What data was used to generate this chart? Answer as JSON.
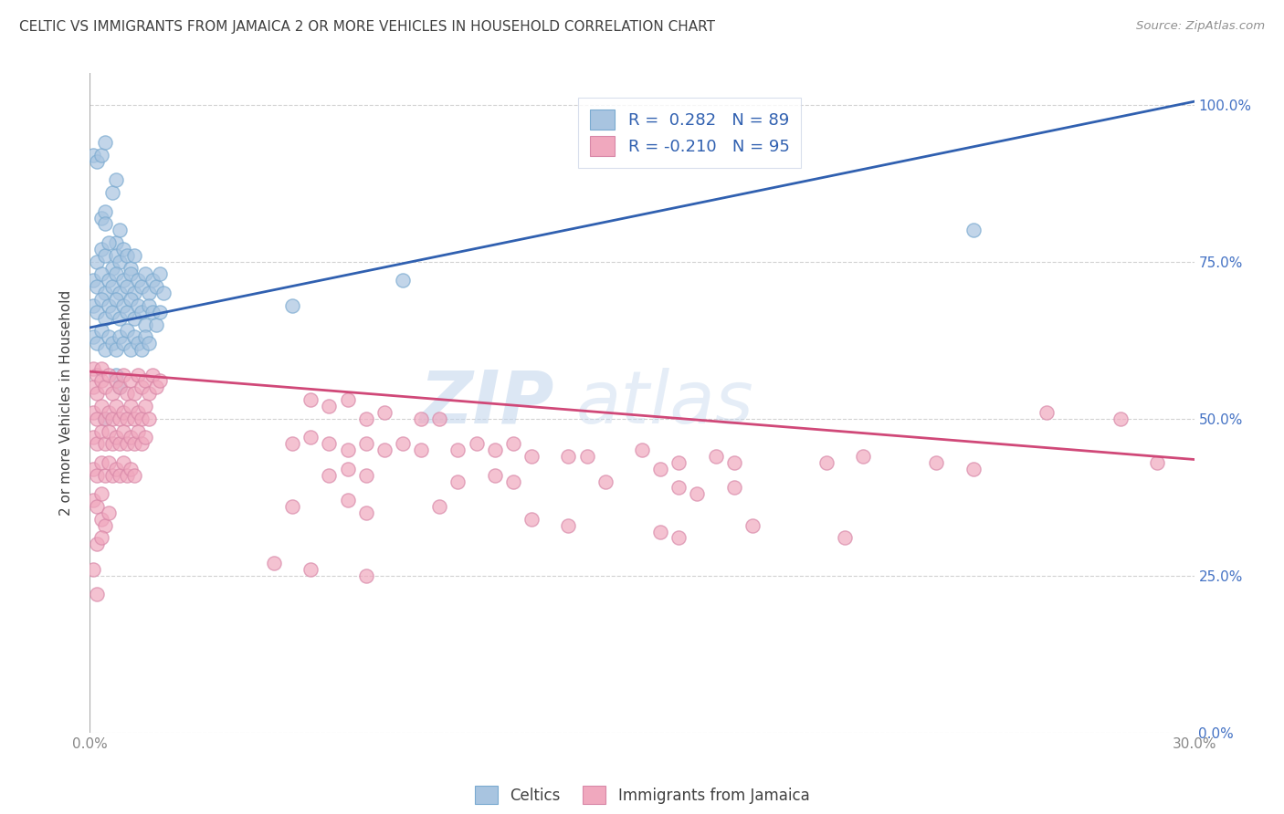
{
  "title": "CELTIC VS IMMIGRANTS FROM JAMAICA 2 OR MORE VEHICLES IN HOUSEHOLD CORRELATION CHART",
  "source": "Source: ZipAtlas.com",
  "ylabel_label": "2 or more Vehicles in Household",
  "legend_label1": "Celtics",
  "legend_label2": "Immigrants from Jamaica",
  "R1": 0.282,
  "N1": 89,
  "R2": -0.21,
  "N2": 95,
  "xlim": [
    0.0,
    0.3
  ],
  "ylim": [
    0.0,
    1.05
  ],
  "blue_color": "#a8c4e0",
  "pink_color": "#f0a8be",
  "blue_line_color": "#3060b0",
  "pink_line_color": "#d04878",
  "watermark_zip": "ZIP",
  "watermark_atlas": "atlas",
  "title_color": "#404040",
  "source_color": "#909090",
  "tick_color_x": "#888888",
  "tick_color_y_right": "#4472c4",
  "blue_line_x": [
    0.0,
    0.3
  ],
  "blue_line_y": [
    0.645,
    1.005
  ],
  "pink_line_x": [
    0.0,
    0.3
  ],
  "pink_line_y": [
    0.575,
    0.435
  ],
  "blue_scatter": [
    [
      0.001,
      0.92
    ],
    [
      0.002,
      0.91
    ],
    [
      0.003,
      0.92
    ],
    [
      0.004,
      0.94
    ],
    [
      0.006,
      0.86
    ],
    [
      0.007,
      0.88
    ],
    [
      0.003,
      0.82
    ],
    [
      0.004,
      0.83
    ],
    [
      0.004,
      0.81
    ],
    [
      0.007,
      0.78
    ],
    [
      0.008,
      0.8
    ],
    [
      0.002,
      0.75
    ],
    [
      0.003,
      0.77
    ],
    [
      0.004,
      0.76
    ],
    [
      0.005,
      0.78
    ],
    [
      0.006,
      0.74
    ],
    [
      0.007,
      0.76
    ],
    [
      0.008,
      0.75
    ],
    [
      0.009,
      0.77
    ],
    [
      0.01,
      0.76
    ],
    [
      0.011,
      0.74
    ],
    [
      0.012,
      0.76
    ],
    [
      0.001,
      0.72
    ],
    [
      0.002,
      0.71
    ],
    [
      0.003,
      0.73
    ],
    [
      0.004,
      0.7
    ],
    [
      0.005,
      0.72
    ],
    [
      0.006,
      0.71
    ],
    [
      0.007,
      0.73
    ],
    [
      0.008,
      0.7
    ],
    [
      0.009,
      0.72
    ],
    [
      0.01,
      0.71
    ],
    [
      0.011,
      0.73
    ],
    [
      0.012,
      0.7
    ],
    [
      0.013,
      0.72
    ],
    [
      0.014,
      0.71
    ],
    [
      0.015,
      0.73
    ],
    [
      0.016,
      0.7
    ],
    [
      0.017,
      0.72
    ],
    [
      0.018,
      0.71
    ],
    [
      0.019,
      0.73
    ],
    [
      0.02,
      0.7
    ],
    [
      0.001,
      0.68
    ],
    [
      0.002,
      0.67
    ],
    [
      0.003,
      0.69
    ],
    [
      0.004,
      0.66
    ],
    [
      0.005,
      0.68
    ],
    [
      0.006,
      0.67
    ],
    [
      0.007,
      0.69
    ],
    [
      0.008,
      0.66
    ],
    [
      0.009,
      0.68
    ],
    [
      0.01,
      0.67
    ],
    [
      0.011,
      0.69
    ],
    [
      0.012,
      0.66
    ],
    [
      0.013,
      0.68
    ],
    [
      0.014,
      0.67
    ],
    [
      0.015,
      0.65
    ],
    [
      0.016,
      0.68
    ],
    [
      0.017,
      0.67
    ],
    [
      0.018,
      0.65
    ],
    [
      0.019,
      0.67
    ],
    [
      0.001,
      0.63
    ],
    [
      0.002,
      0.62
    ],
    [
      0.003,
      0.64
    ],
    [
      0.004,
      0.61
    ],
    [
      0.005,
      0.63
    ],
    [
      0.006,
      0.62
    ],
    [
      0.007,
      0.61
    ],
    [
      0.008,
      0.63
    ],
    [
      0.009,
      0.62
    ],
    [
      0.01,
      0.64
    ],
    [
      0.011,
      0.61
    ],
    [
      0.012,
      0.63
    ],
    [
      0.013,
      0.62
    ],
    [
      0.014,
      0.61
    ],
    [
      0.015,
      0.63
    ],
    [
      0.016,
      0.62
    ],
    [
      0.007,
      0.57
    ],
    [
      0.008,
      0.55
    ],
    [
      0.004,
      0.5
    ],
    [
      0.24,
      0.8
    ],
    [
      0.085,
      0.72
    ],
    [
      0.055,
      0.68
    ]
  ],
  "pink_scatter": [
    [
      0.001,
      0.58
    ],
    [
      0.002,
      0.57
    ],
    [
      0.003,
      0.58
    ],
    [
      0.001,
      0.55
    ],
    [
      0.002,
      0.54
    ],
    [
      0.003,
      0.56
    ],
    [
      0.004,
      0.55
    ],
    [
      0.005,
      0.57
    ],
    [
      0.006,
      0.54
    ],
    [
      0.007,
      0.56
    ],
    [
      0.008,
      0.55
    ],
    [
      0.009,
      0.57
    ],
    [
      0.01,
      0.54
    ],
    [
      0.011,
      0.56
    ],
    [
      0.012,
      0.54
    ],
    [
      0.013,
      0.57
    ],
    [
      0.014,
      0.55
    ],
    [
      0.015,
      0.56
    ],
    [
      0.016,
      0.54
    ],
    [
      0.017,
      0.57
    ],
    [
      0.018,
      0.55
    ],
    [
      0.019,
      0.56
    ],
    [
      0.001,
      0.51
    ],
    [
      0.002,
      0.5
    ],
    [
      0.003,
      0.52
    ],
    [
      0.004,
      0.5
    ],
    [
      0.005,
      0.51
    ],
    [
      0.006,
      0.5
    ],
    [
      0.007,
      0.52
    ],
    [
      0.008,
      0.5
    ],
    [
      0.009,
      0.51
    ],
    [
      0.01,
      0.5
    ],
    [
      0.011,
      0.52
    ],
    [
      0.012,
      0.5
    ],
    [
      0.013,
      0.51
    ],
    [
      0.014,
      0.5
    ],
    [
      0.015,
      0.52
    ],
    [
      0.016,
      0.5
    ],
    [
      0.001,
      0.47
    ],
    [
      0.002,
      0.46
    ],
    [
      0.003,
      0.48
    ],
    [
      0.004,
      0.46
    ],
    [
      0.005,
      0.48
    ],
    [
      0.006,
      0.46
    ],
    [
      0.007,
      0.47
    ],
    [
      0.008,
      0.46
    ],
    [
      0.009,
      0.48
    ],
    [
      0.01,
      0.46
    ],
    [
      0.011,
      0.47
    ],
    [
      0.012,
      0.46
    ],
    [
      0.013,
      0.48
    ],
    [
      0.014,
      0.46
    ],
    [
      0.015,
      0.47
    ],
    [
      0.001,
      0.42
    ],
    [
      0.002,
      0.41
    ],
    [
      0.003,
      0.43
    ],
    [
      0.004,
      0.41
    ],
    [
      0.005,
      0.43
    ],
    [
      0.006,
      0.41
    ],
    [
      0.007,
      0.42
    ],
    [
      0.008,
      0.41
    ],
    [
      0.009,
      0.43
    ],
    [
      0.01,
      0.41
    ],
    [
      0.011,
      0.42
    ],
    [
      0.012,
      0.41
    ],
    [
      0.001,
      0.37
    ],
    [
      0.002,
      0.36
    ],
    [
      0.003,
      0.38
    ],
    [
      0.003,
      0.34
    ],
    [
      0.004,
      0.33
    ],
    [
      0.005,
      0.35
    ],
    [
      0.002,
      0.3
    ],
    [
      0.003,
      0.31
    ],
    [
      0.001,
      0.26
    ],
    [
      0.002,
      0.22
    ],
    [
      0.06,
      0.53
    ],
    [
      0.065,
      0.52
    ],
    [
      0.07,
      0.53
    ],
    [
      0.075,
      0.5
    ],
    [
      0.08,
      0.51
    ],
    [
      0.09,
      0.5
    ],
    [
      0.095,
      0.5
    ],
    [
      0.055,
      0.46
    ],
    [
      0.06,
      0.47
    ],
    [
      0.065,
      0.46
    ],
    [
      0.07,
      0.45
    ],
    [
      0.075,
      0.46
    ],
    [
      0.08,
      0.45
    ],
    [
      0.085,
      0.46
    ],
    [
      0.09,
      0.45
    ],
    [
      0.1,
      0.45
    ],
    [
      0.105,
      0.46
    ],
    [
      0.11,
      0.45
    ],
    [
      0.115,
      0.46
    ],
    [
      0.12,
      0.44
    ],
    [
      0.13,
      0.44
    ],
    [
      0.135,
      0.44
    ],
    [
      0.15,
      0.45
    ],
    [
      0.16,
      0.43
    ],
    [
      0.17,
      0.44
    ],
    [
      0.175,
      0.43
    ],
    [
      0.2,
      0.43
    ],
    [
      0.21,
      0.44
    ],
    [
      0.23,
      0.43
    ],
    [
      0.065,
      0.41
    ],
    [
      0.07,
      0.42
    ],
    [
      0.075,
      0.41
    ],
    [
      0.1,
      0.4
    ],
    [
      0.11,
      0.41
    ],
    [
      0.115,
      0.4
    ],
    [
      0.14,
      0.4
    ],
    [
      0.155,
      0.42
    ],
    [
      0.16,
      0.39
    ],
    [
      0.165,
      0.38
    ],
    [
      0.175,
      0.39
    ],
    [
      0.24,
      0.42
    ],
    [
      0.26,
      0.51
    ],
    [
      0.28,
      0.5
    ],
    [
      0.29,
      0.43
    ],
    [
      0.055,
      0.36
    ],
    [
      0.07,
      0.37
    ],
    [
      0.075,
      0.35
    ],
    [
      0.095,
      0.36
    ],
    [
      0.12,
      0.34
    ],
    [
      0.13,
      0.33
    ],
    [
      0.155,
      0.32
    ],
    [
      0.16,
      0.31
    ],
    [
      0.18,
      0.33
    ],
    [
      0.205,
      0.31
    ],
    [
      0.05,
      0.27
    ],
    [
      0.06,
      0.26
    ],
    [
      0.075,
      0.25
    ]
  ]
}
